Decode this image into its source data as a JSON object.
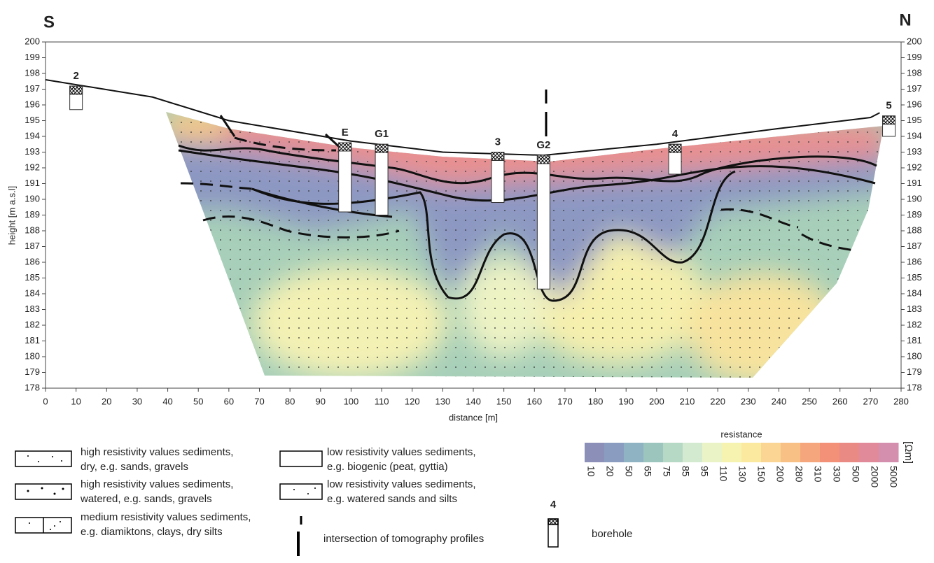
{
  "chart_data": {
    "type": "section",
    "x_label": "distance [m]",
    "y_label": "height [m a.s.l]",
    "left_label": "S",
    "right_label": "N",
    "xlim": [
      0,
      280
    ],
    "ylim": [
      178,
      200
    ],
    "xticks": [
      0,
      10,
      20,
      30,
      40,
      50,
      60,
      70,
      80,
      90,
      100,
      110,
      120,
      130,
      140,
      150,
      160,
      170,
      180,
      190,
      200,
      210,
      220,
      230,
      240,
      250,
      260,
      270,
      280
    ],
    "yticks": [
      178,
      179,
      180,
      181,
      182,
      183,
      184,
      185,
      186,
      187,
      188,
      189,
      190,
      191,
      192,
      193,
      194,
      195,
      196,
      197,
      198,
      199,
      200
    ],
    "surface": {
      "x": [
        0,
        35,
        60,
        100,
        130,
        163,
        200,
        240,
        270,
        273
      ],
      "y": [
        197.6,
        196.5,
        195,
        193.7,
        193,
        192.8,
        193.5,
        194.5,
        195.2,
        195.5
      ]
    },
    "boreholes": [
      {
        "name": "2",
        "x": 10,
        "top": 197.2,
        "bottom": 195.7
      },
      {
        "name": "E",
        "x": 98,
        "top": 193.6,
        "bottom": 189.2
      },
      {
        "name": "G1",
        "x": 110,
        "top": 193.5,
        "bottom": 189
      },
      {
        "name": "3",
        "x": 148,
        "top": 193,
        "bottom": 189.8
      },
      {
        "name": "G2",
        "x": 163,
        "top": 192.8,
        "bottom": 184.3
      },
      {
        "name": "4",
        "x": 206,
        "top": 193.5,
        "bottom": 191.6
      },
      {
        "name": "5",
        "x": 276,
        "top": 195.3,
        "bottom": 194
      }
    ]
  },
  "colorbar": {
    "title": "resistance",
    "unit": "[Ωm]",
    "ticks": [
      10,
      20,
      50,
      65,
      75,
      85,
      95,
      110,
      130,
      150,
      200,
      280,
      310,
      330,
      500,
      2000,
      5000
    ],
    "colors": [
      "#8c8fb8",
      "#8a9dc0",
      "#8fb3c2",
      "#9cc6bd",
      "#b5d9c4",
      "#d3ead0",
      "#eaf3c6",
      "#f6f3b0",
      "#fbe9a0",
      "#fbd594",
      "#f8c085",
      "#f5a67c",
      "#f39078",
      "#ea8a84",
      "#e08a9a",
      "#d48fae"
    ]
  },
  "legend": {
    "items": [
      {
        "lines": [
          "high resistivity values sediments,",
          "dry, e.g. sands, gravels"
        ]
      },
      {
        "lines": [
          "high resistivity values sediments,",
          "watered, e.g. sands, gravels"
        ]
      },
      {
        "lines": [
          "medium resistivity values sediments,",
          " e.g. diamiktons, clays, dry silts"
        ]
      },
      {
        "lines": [
          "low resistivity values sediments,",
          "e.g. biogenic (peat, gyttia)"
        ]
      },
      {
        "lines": [
          "low resistivity values sediments,",
          "e.g.  watered sands and silts"
        ]
      }
    ],
    "intersection_text": "intersection of tomography profiles",
    "borehole_label": "4",
    "borehole_text": "borehole"
  }
}
